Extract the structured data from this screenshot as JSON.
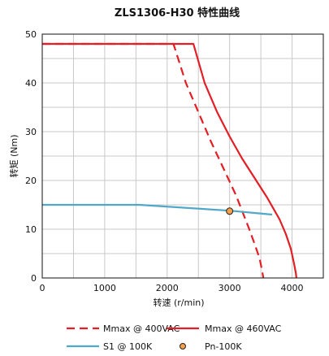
{
  "chart_data": {
    "type": "line",
    "title": "ZLS1306-H30 特性曲线",
    "xlabel": "转速 (r/min)",
    "ylabel": "转矩 (Nm)",
    "xlim": [
      0,
      4500
    ],
    "ylim": [
      0,
      50
    ],
    "xticks": [
      0,
      1000,
      2000,
      3000,
      4000
    ],
    "yticks": [
      0,
      10,
      20,
      30,
      40,
      50
    ],
    "grid": true,
    "legend_position": "bottom",
    "series": [
      {
        "name": "Mmax @ 400VAC",
        "color": "#e31e24",
        "style": "dashed",
        "x": [
          0,
          2100,
          2300,
          2500,
          2700,
          2900,
          3100,
          3300,
          3400,
          3480,
          3520,
          3540
        ],
        "y": [
          48,
          48,
          40,
          34,
          28,
          22.5,
          17,
          10.5,
          7,
          4,
          1.5,
          0
        ]
      },
      {
        "name": "Mmax @ 460VAC",
        "color": "#e31e24",
        "style": "solid",
        "x": [
          0,
          2420,
          2600,
          2800,
          3000,
          3200,
          3400,
          3600,
          3800,
          3900,
          3980,
          4030,
          4060,
          4070
        ],
        "y": [
          48,
          48,
          40,
          34,
          29,
          24.5,
          20.5,
          16.5,
          12,
          9,
          6,
          3,
          1,
          0
        ]
      },
      {
        "name": "S1 @ 100K",
        "color": "#4fa8c9",
        "style": "solid",
        "x": [
          0,
          1550,
          3000,
          3680
        ],
        "y": [
          15,
          15,
          13.8,
          13
        ]
      },
      {
        "name": "Pn-100K",
        "color": "#f5a04a",
        "style": "marker",
        "x": [
          3000
        ],
        "y": [
          13.7
        ]
      }
    ]
  }
}
